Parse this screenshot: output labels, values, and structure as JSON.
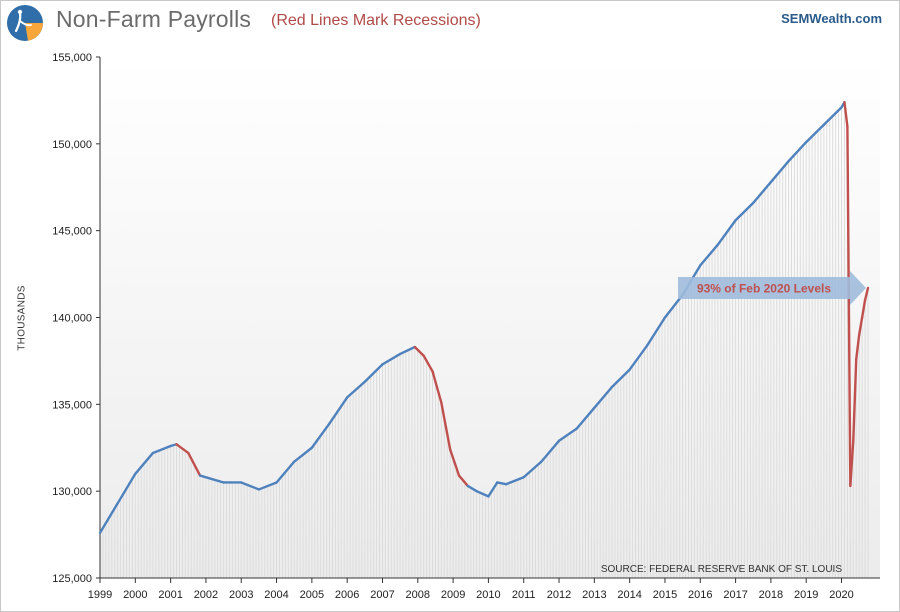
{
  "header": {
    "title": "Non-Farm  Payrolls",
    "subtitle": "(Red Lines Mark Recessions)",
    "brand": "SEMWealth.com"
  },
  "colors": {
    "line": "#4f81bd",
    "recession": "#c0504d",
    "arrow": "#9fbbdc",
    "annotation_text": "#c0504d",
    "fill": "#dcdcdc",
    "logo_bg": "#2f6ea8",
    "logo_accent": "#f7a63a"
  },
  "icons": {
    "logo": "semwealth-logo-icon"
  },
  "chart_data": {
    "type": "line",
    "title": "Non-Farm  Payrolls",
    "subtitle": "(Red Lines Mark Recessions)",
    "xlabel": "",
    "ylabel": "THOUSANDS",
    "ylim": [
      125000,
      155000
    ],
    "xlim": [
      "1999-01",
      "2020-10"
    ],
    "y_ticks": [
      "125,000",
      "130,000",
      "135,000",
      "140,000",
      "145,000",
      "150,000",
      "155,000"
    ],
    "x_ticks": [
      "1999",
      "2000",
      "2001",
      "2002",
      "2003",
      "2004",
      "2005",
      "2006",
      "2007",
      "2008",
      "2009",
      "2010",
      "2011",
      "2012",
      "2013",
      "2014",
      "2015",
      "2016",
      "2017",
      "2018",
      "2019",
      "2020"
    ],
    "grid": false,
    "series": [
      {
        "name": "Non-Farm Payrolls",
        "x": [
          "1999-01",
          "1999-07",
          "2000-01",
          "2000-07",
          "2001-01",
          "2001-03",
          "2001-07",
          "2001-11",
          "2002-07",
          "2003-01",
          "2003-07",
          "2004-01",
          "2004-07",
          "2005-01",
          "2005-07",
          "2006-01",
          "2006-07",
          "2007-01",
          "2007-07",
          "2007-12",
          "2008-03",
          "2008-06",
          "2008-09",
          "2008-12",
          "2009-03",
          "2009-06",
          "2009-09",
          "2010-01",
          "2010-04",
          "2010-07",
          "2011-01",
          "2011-07",
          "2012-01",
          "2012-07",
          "2013-01",
          "2013-07",
          "2014-01",
          "2014-07",
          "2015-01",
          "2015-07",
          "2016-01",
          "2016-07",
          "2017-01",
          "2017-07",
          "2018-01",
          "2018-07",
          "2019-01",
          "2019-07",
          "2020-01",
          "2020-02",
          "2020-03",
          "2020-04",
          "2020-05",
          "2020-06",
          "2020-07",
          "2020-08",
          "2020-09",
          "2020-10"
        ],
        "y": [
          127600,
          129300,
          131000,
          132200,
          132600,
          132700,
          132200,
          130900,
          130500,
          130500,
          130100,
          130500,
          131700,
          132500,
          133900,
          135400,
          136300,
          137300,
          137900,
          138300,
          137800,
          136900,
          135100,
          132400,
          130900,
          130300,
          130000,
          129700,
          130500,
          130400,
          130800,
          131700,
          132900,
          133600,
          134800,
          136000,
          137000,
          138400,
          140000,
          141300,
          143000,
          144200,
          145600,
          146600,
          147800,
          149000,
          150100,
          151100,
          152100,
          152400,
          151000,
          130300,
          132900,
          137600,
          139000,
          140000,
          141000,
          141700
        ]
      }
    ],
    "recession_periods": [
      [
        "2001-03",
        "2001-11"
      ],
      [
        "2007-12",
        "2009-06"
      ],
      [
        "2020-02",
        "2020-10"
      ]
    ],
    "annotations": [
      {
        "text": "93% of Feb 2020 Levels",
        "anchor": "2020-10"
      },
      {
        "text": "SOURCE: FEDERAL RESERVE BANK OF ST. LOUIS",
        "position": "bottom-right"
      }
    ]
  }
}
